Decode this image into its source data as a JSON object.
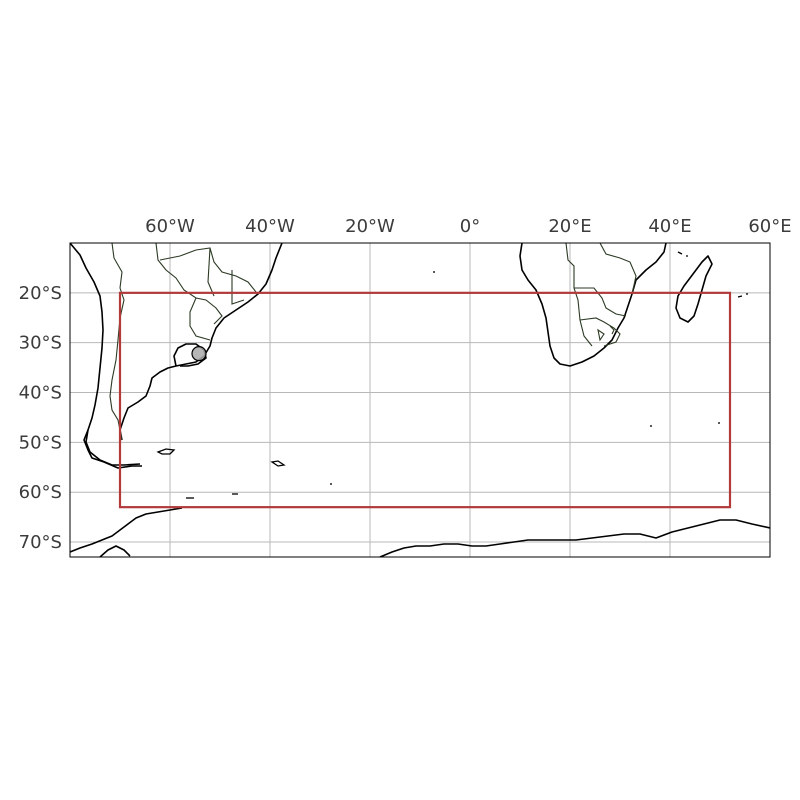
{
  "map": {
    "projection": "PlateCarree",
    "extent": {
      "lon": [
        -80,
        60
      ],
      "lat": [
        -73,
        -10
      ]
    },
    "lon_ticks": [
      {
        "value": -60,
        "label": "60°W"
      },
      {
        "value": -40,
        "label": "40°W"
      },
      {
        "value": -20,
        "label": "20°W"
      },
      {
        "value": 0,
        "label": "0°"
      },
      {
        "value": 20,
        "label": "20°E"
      },
      {
        "value": 40,
        "label": "40°E"
      },
      {
        "value": 60,
        "label": "60°E"
      }
    ],
    "lat_ticks": [
      {
        "value": -20,
        "label": "20°S"
      },
      {
        "value": -30,
        "label": "30°S"
      },
      {
        "value": -40,
        "label": "40°S"
      },
      {
        "value": -50,
        "label": "50°S"
      },
      {
        "value": -60,
        "label": "60°S"
      },
      {
        "value": -70,
        "label": "70°S"
      }
    ],
    "gridlines": true,
    "lon_labels_position": "top",
    "lat_labels_position": "left",
    "box": {
      "lon_min": -70,
      "lon_max": 52,
      "lat_min": -63,
      "lat_max": -20,
      "color": "#b23a3a"
    },
    "marker": {
      "lon": -54.2,
      "lat": -32.2,
      "fill": "#a9a9a9",
      "stroke": "#000000"
    },
    "coast_color": "#000000",
    "border_color": "#2c3a24"
  }
}
